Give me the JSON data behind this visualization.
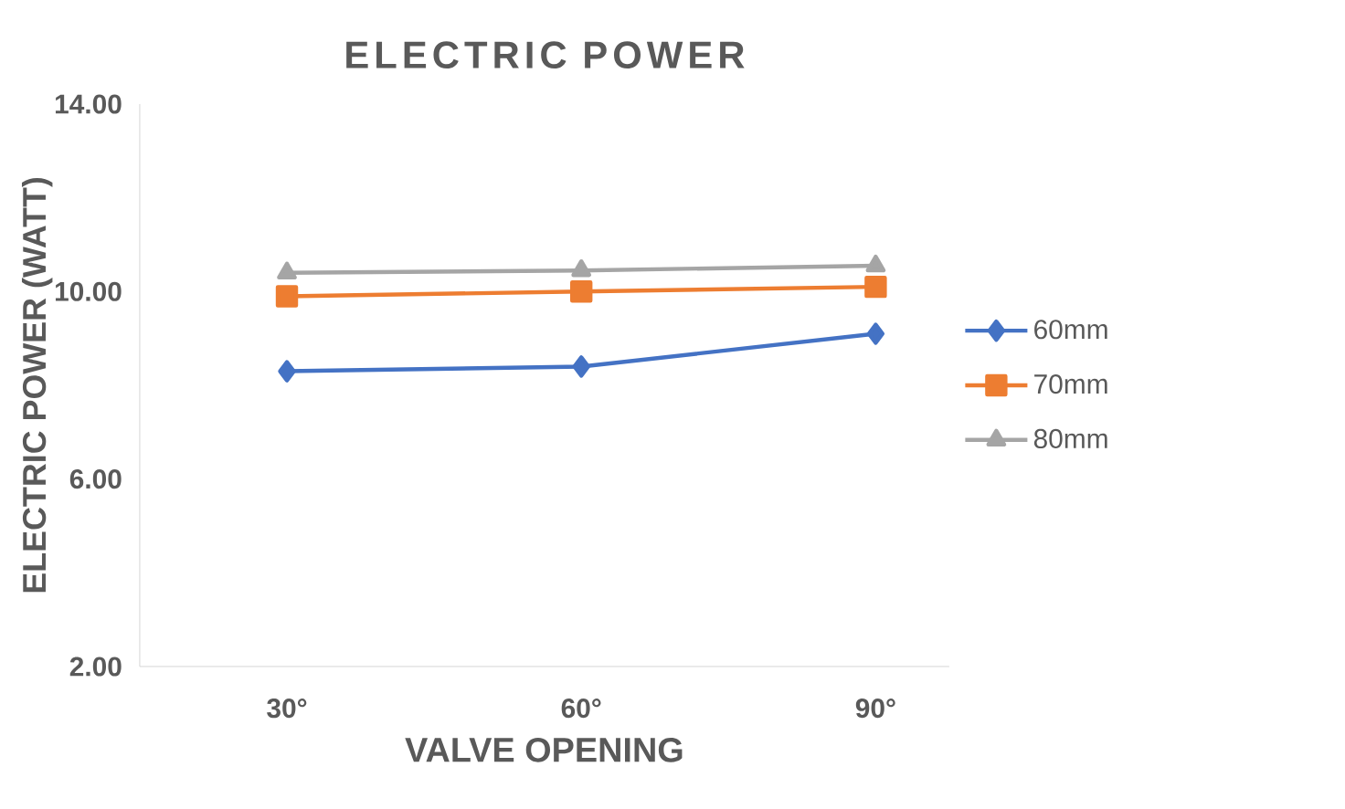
{
  "chart_data": {
    "type": "line",
    "title": "ELECTRIC  POWER",
    "xlabel": "VALVE OPENING",
    "ylabel": "ELECTRIC POWER (WATT)",
    "categories": [
      "30°",
      "60°",
      "90°"
    ],
    "ylim": [
      2,
      14
    ],
    "yticks": [
      {
        "value": 2,
        "label": "2.00"
      },
      {
        "value": 6,
        "label": "6.00"
      },
      {
        "value": 10,
        "label": "10.00"
      },
      {
        "value": 14,
        "label": "14.00"
      }
    ],
    "grid": false,
    "legend": "right",
    "series": [
      {
        "name": "60mm",
        "color": "#4472c4",
        "marker": "diamond",
        "values": [
          8.3,
          8.4,
          9.1
        ]
      },
      {
        "name": "70mm",
        "color": "#ed7d31",
        "marker": "square",
        "values": [
          9.9,
          10.0,
          10.1
        ]
      },
      {
        "name": "80mm",
        "color": "#a5a5a5",
        "marker": "triangle",
        "values": [
          10.4,
          10.45,
          10.55
        ]
      }
    ]
  }
}
